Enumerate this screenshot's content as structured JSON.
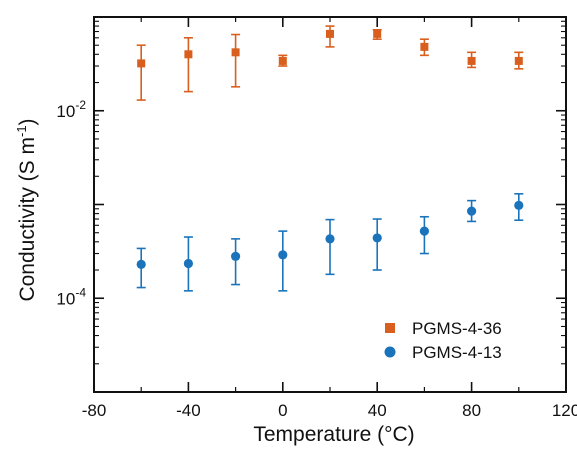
{
  "chart_data": {
    "type": "scatter",
    "xlabel": "Temperature (°C)",
    "ylabel": {
      "main": "Conductivity (S m",
      "sup": "-1",
      "close": ")"
    },
    "xlim": [
      -80,
      120
    ],
    "ylim": [
      1e-05,
      0.1
    ],
    "yscale": "log",
    "x_ticks": [
      -80,
      -40,
      0,
      40,
      80,
      120
    ],
    "x_tick_labels": [
      "-80",
      "-40",
      "0",
      "40",
      "80",
      "120"
    ],
    "y_labeled_ticks": [
      {
        "value": 0.01,
        "base": "10",
        "exp": "-2"
      },
      {
        "value": 0.0001,
        "base": "10",
        "exp": "-4"
      }
    ],
    "y_major_ticks": [
      1e-05,
      0.0001,
      0.001,
      0.01,
      0.1
    ],
    "grid": false,
    "legend_position": "bottom-right",
    "series": [
      {
        "name": "PGMS-4-36",
        "marker": "square",
        "color": "#d95f1e",
        "points": [
          {
            "x": -60,
            "y": 0.032,
            "low": 0.013,
            "high": 0.05
          },
          {
            "x": -40,
            "y": 0.04,
            "low": 0.016,
            "high": 0.06
          },
          {
            "x": -20,
            "y": 0.042,
            "low": 0.018,
            "high": 0.065
          },
          {
            "x": 0,
            "y": 0.034,
            "low": 0.03,
            "high": 0.039
          },
          {
            "x": 20,
            "y": 0.066,
            "low": 0.048,
            "high": 0.08
          },
          {
            "x": 40,
            "y": 0.066,
            "low": 0.058,
            "high": 0.073
          },
          {
            "x": 60,
            "y": 0.048,
            "low": 0.039,
            "high": 0.058
          },
          {
            "x": 80,
            "y": 0.034,
            "low": 0.029,
            "high": 0.042
          },
          {
            "x": 100,
            "y": 0.034,
            "low": 0.028,
            "high": 0.042
          }
        ]
      },
      {
        "name": "PGMS-4-13",
        "marker": "circle",
        "color": "#1b74bb",
        "points": [
          {
            "x": -60,
            "y": 0.00023,
            "low": 0.00013,
            "high": 0.00034
          },
          {
            "x": -40,
            "y": 0.000235,
            "low": 0.00012,
            "high": 0.00045
          },
          {
            "x": -20,
            "y": 0.00028,
            "low": 0.00014,
            "high": 0.00043
          },
          {
            "x": 0,
            "y": 0.00029,
            "low": 0.00012,
            "high": 0.00052
          },
          {
            "x": 20,
            "y": 0.00043,
            "low": 0.00018,
            "high": 0.00069
          },
          {
            "x": 40,
            "y": 0.00044,
            "low": 0.0002,
            "high": 0.0007
          },
          {
            "x": 60,
            "y": 0.00052,
            "low": 0.0003,
            "high": 0.00074
          },
          {
            "x": 80,
            "y": 0.00085,
            "low": 0.00066,
            "high": 0.0011
          },
          {
            "x": 100,
            "y": 0.00098,
            "low": 0.00068,
            "high": 0.0013
          }
        ]
      }
    ]
  }
}
